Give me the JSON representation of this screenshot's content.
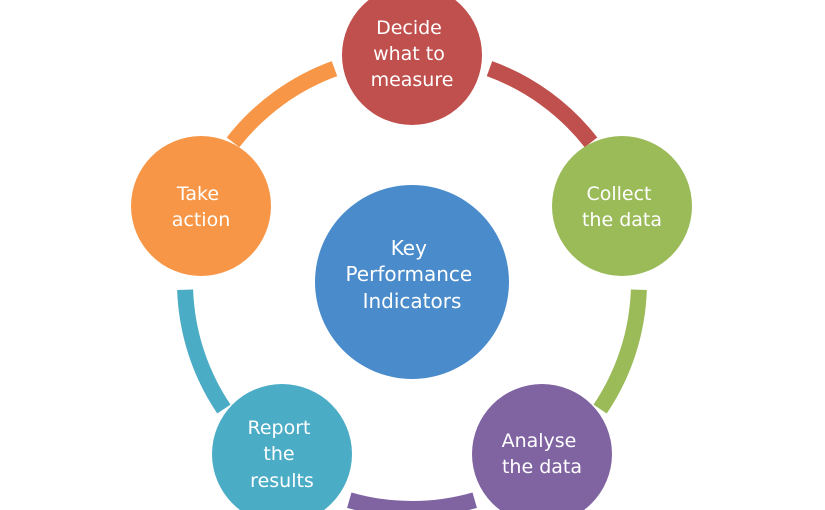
{
  "center": {
    "lines": [
      "Key",
      "Performance",
      "Indicators"
    ],
    "color": "#4A8CCB"
  },
  "steps": [
    {
      "id": "decide",
      "lines": [
        "Decide",
        "what to",
        "measure"
      ],
      "color": "#C0504D"
    },
    {
      "id": "collect",
      "lines": [
        "Collect",
        "the data"
      ],
      "color": "#9BBB59"
    },
    {
      "id": "analyse",
      "lines": [
        "Analyse",
        "the data"
      ],
      "color": "#8064A2"
    },
    {
      "id": "report",
      "lines": [
        "Report",
        "the",
        "results"
      ],
      "color": "#4BACC6"
    },
    {
      "id": "take",
      "lines": [
        "Take",
        "action"
      ],
      "color": "#F79646"
    }
  ]
}
